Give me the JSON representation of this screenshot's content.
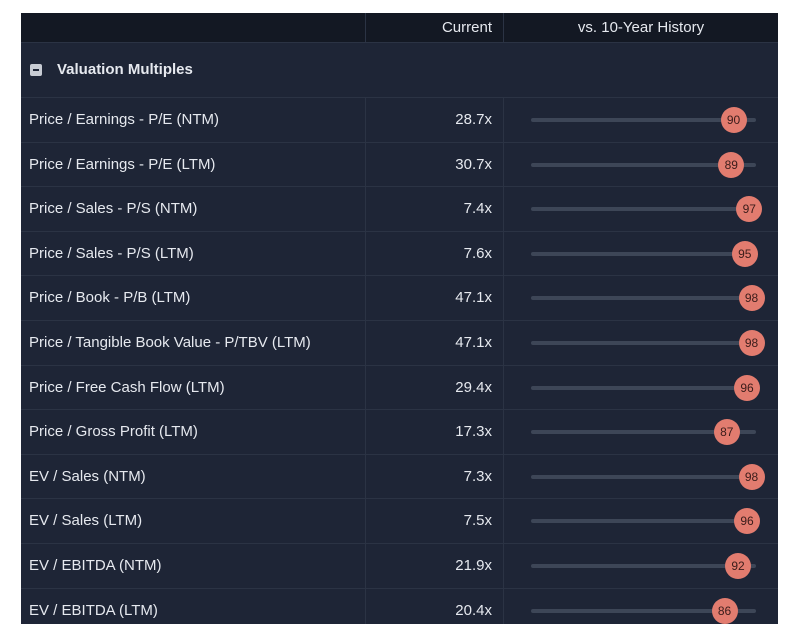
{
  "header": {
    "col_current": "Current",
    "col_history": "vs. 10-Year History"
  },
  "section": {
    "title": "Valuation Multiples",
    "collapse_icon": "minus-square-icon"
  },
  "rows": [
    {
      "name": "Price / Earnings - P/E (NTM)",
      "current": "28.7x",
      "percentile": "90"
    },
    {
      "name": "Price / Earnings - P/E (LTM)",
      "current": "30.7x",
      "percentile": "89"
    },
    {
      "name": "Price / Sales - P/S (NTM)",
      "current": "7.4x",
      "percentile": "97"
    },
    {
      "name": "Price / Sales - P/S (LTM)",
      "current": "7.6x",
      "percentile": "95"
    },
    {
      "name": "Price / Book - P/B (LTM)",
      "current": "47.1x",
      "percentile": "98"
    },
    {
      "name": "Price / Tangible Book Value - P/TBV (LTM)",
      "current": "47.1x",
      "percentile": "98"
    },
    {
      "name": "Price / Free Cash Flow (LTM)",
      "current": "29.4x",
      "percentile": "96"
    },
    {
      "name": "Price / Gross Profit (LTM)",
      "current": "17.3x",
      "percentile": "87"
    },
    {
      "name": "EV / Sales (NTM)",
      "current": "7.3x",
      "percentile": "98"
    },
    {
      "name": "EV / Sales (LTM)",
      "current": "7.5x",
      "percentile": "96"
    },
    {
      "name": "EV / EBITDA (NTM)",
      "current": "21.9x",
      "percentile": "92"
    },
    {
      "name": "EV / EBITDA (LTM)",
      "current": "20.4x",
      "percentile": "86"
    }
  ],
  "colors": {
    "panel_bg": "#1e2536",
    "header_bg": "#131823",
    "dot": "#e27c6f",
    "track": "#3d4657"
  }
}
